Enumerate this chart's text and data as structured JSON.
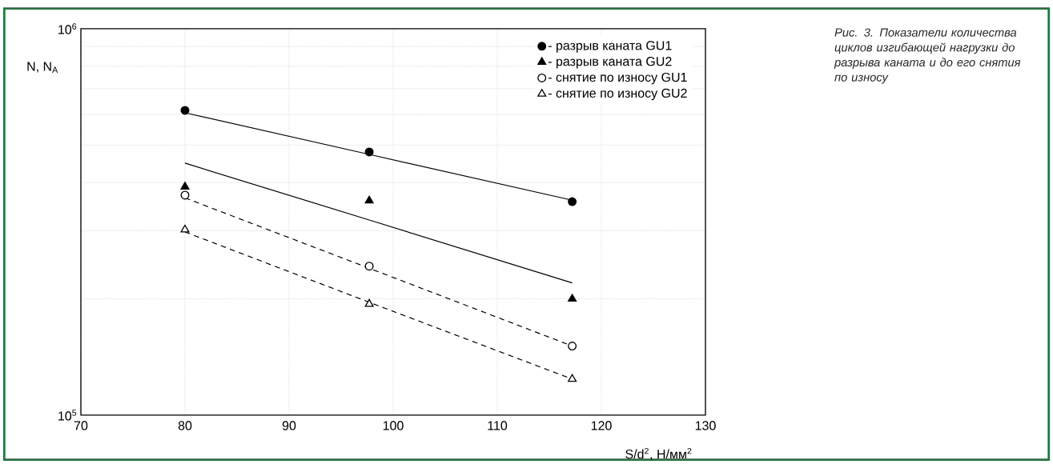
{
  "chart_data": {
    "type": "scatter",
    "ylabel": "N, N$_{A}$",
    "xlabel": "S/d$^{2}$, Н/мм$^{2}$",
    "annotations": [
      "Рис. 3. Показатели количества циклов изгибающей нагрузки до разрыва каната и до его снятия  по износу"
    ],
    "log": true,
    "grid": true,
    "legend": "top right",
    "xlim": [
      70,
      130
    ],
    "xticks": [
      70,
      80,
      90,
      100,
      110,
      120,
      130
    ],
    "ylim": [
      100000,
      1000000
    ],
    "yticks": [
      {
        "value": 100000,
        "label": "10$^{5}$"
      },
      {
        "value": 200000,
        "label": null
      },
      {
        "value": 300000,
        "label": null
      },
      {
        "value": 400000,
        "label": null
      },
      {
        "value": 500000,
        "label": null
      },
      {
        "value": 600000,
        "label": null
      },
      {
        "value": 700000,
        "label": null
      },
      {
        "value": 800000,
        "label": null
      },
      {
        "value": 900000,
        "label": null
      },
      {
        "value": 1000000,
        "label": "10$^{6}$"
      }
    ],
    "x": [
      80,
      97.7,
      117.2
    ],
    "series": [
      {
        "name": "- разрыв каната GU1",
        "color": "#000000",
        "marker": "circle",
        "values": [
          615000,
          480000,
          357000
        ]
      },
      {
        "name": "- разрыв каната GU2",
        "color": "#000000",
        "marker": "triangle",
        "values": [
          390000,
          359000,
          200000
        ]
      },
      {
        "name": "- снятие по износу GU1",
        "color": "#ffffff",
        "marker": "circle",
        "values": [
          371000,
          243000,
          151000
        ]
      },
      {
        "name": "- снятие по износу GU2",
        "color": "#ffffff",
        "marker": "triangle",
        "values": [
          302000,
          194000,
          124000
        ]
      },
      {
        "type": "line",
        "color": "#000000",
        "marker": "none",
        "line_style": "solid",
        "values": [
          606000,
          473000,
          360000
        ]
      },
      {
        "type": "line",
        "color": "#000000",
        "marker": "none",
        "line_style": "solid",
        "values": [
          449000,
          320000,
          220000
        ]
      },
      {
        "type": "line",
        "color": "#000000",
        "marker": "none",
        "line_style": "dashed",
        "values": [
          365000,
          240000,
          151000
        ]
      },
      {
        "type": "line",
        "color": "#000000",
        "marker": "none",
        "line_style": "dashed",
        "values": [
          298000,
          196000,
          124000
        ]
      }
    ]
  }
}
